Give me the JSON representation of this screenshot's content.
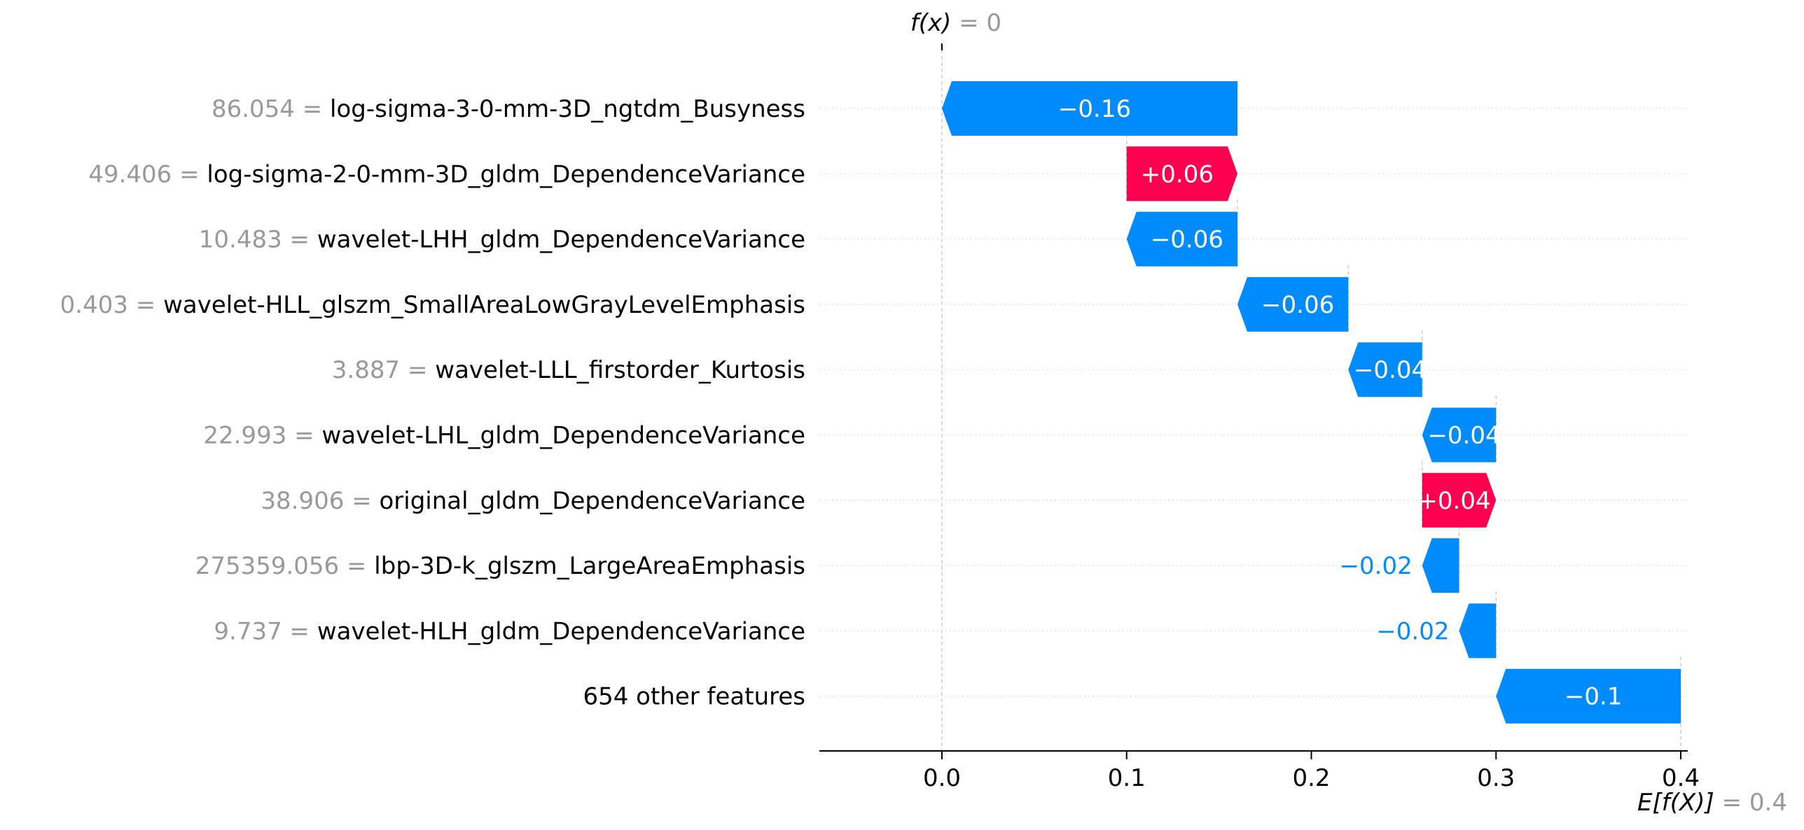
{
  "chart_data": {
    "type": "waterfall",
    "top_annotation": {
      "symbol": "f(x)",
      "operator": "= 0"
    },
    "bottom_annotation": {
      "symbol": "E[f(X)]",
      "operator": "= 0.4"
    },
    "base_value": 0.4,
    "output_value": 0,
    "xlim": [
      -0.067,
      0.403
    ],
    "x_ticks": [
      {
        "value": 0.0,
        "label": "0.0"
      },
      {
        "value": 0.1,
        "label": "0.1"
      },
      {
        "value": 0.2,
        "label": "0.2"
      },
      {
        "value": 0.3,
        "label": "0.3"
      },
      {
        "value": 0.4,
        "label": "0.4"
      }
    ],
    "features": [
      {
        "feature_value": "86.054 =",
        "name": "log-sigma-3-0-mm-3D_ngtdm_Busyness",
        "start": 0.16,
        "end": 0.0,
        "contribution": -0.16,
        "label": "−0.16",
        "label_inside": true
      },
      {
        "feature_value": "49.406 =",
        "name": "log-sigma-2-0-mm-3D_gldm_DependenceVariance",
        "start": 0.1,
        "end": 0.16,
        "contribution": 0.06,
        "label": "+0.06",
        "label_inside": true
      },
      {
        "feature_value": "10.483 =",
        "name": "wavelet-LHH_gldm_DependenceVariance",
        "start": 0.16,
        "end": 0.1,
        "contribution": -0.06,
        "label": "−0.06",
        "label_inside": true
      },
      {
        "feature_value": "0.403 =",
        "name": "wavelet-HLL_glszm_SmallAreaLowGrayLevelEmphasis",
        "start": 0.22,
        "end": 0.16,
        "contribution": -0.06,
        "label": "−0.06",
        "label_inside": true
      },
      {
        "feature_value": "3.887 =",
        "name": "wavelet-LLL_firstorder_Kurtosis",
        "start": 0.26,
        "end": 0.22,
        "contribution": -0.04,
        "label": "−0.04",
        "label_inside": true
      },
      {
        "feature_value": "22.993 =",
        "name": "wavelet-LHL_gldm_DependenceVariance",
        "start": 0.3,
        "end": 0.26,
        "contribution": -0.04,
        "label": "−0.04",
        "label_inside": true
      },
      {
        "feature_value": "38.906 =",
        "name": "original_gldm_DependenceVariance",
        "start": 0.26,
        "end": 0.3,
        "contribution": 0.04,
        "label": "+0.04",
        "label_inside": true
      },
      {
        "feature_value": "275359.056 =",
        "name": "lbp-3D-k_glszm_LargeAreaEmphasis",
        "start": 0.28,
        "end": 0.26,
        "contribution": -0.02,
        "label": "−0.02",
        "label_inside": false
      },
      {
        "feature_value": "9.737 =",
        "name": "wavelet-HLH_gldm_DependenceVariance",
        "start": 0.3,
        "end": 0.28,
        "contribution": -0.02,
        "label": "−0.02",
        "label_inside": false
      },
      {
        "feature_value": "",
        "name": "654 other features",
        "start": 0.4,
        "end": 0.3,
        "contribution": -0.1,
        "label": "−0.1",
        "label_inside": true
      }
    ],
    "colors": {
      "negative": "#008bfb",
      "positive": "#ff0051",
      "value_text": "#999999",
      "name_text": "#000000",
      "inside_text": "#ffffff",
      "grid": "#cccccc"
    },
    "grid": true
  }
}
